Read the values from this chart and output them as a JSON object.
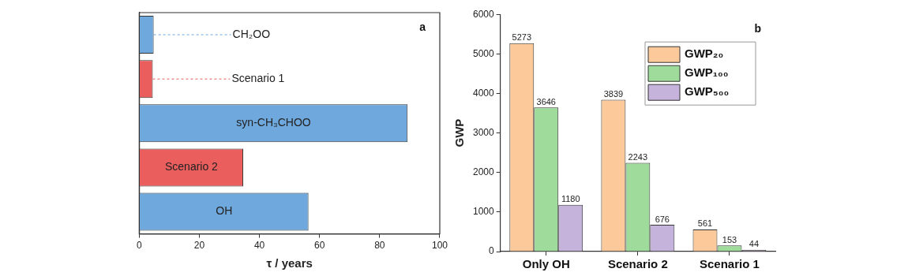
{
  "chart_data": [
    {
      "type": "bar",
      "orientation": "horizontal",
      "categories": [
        "CH₂OO",
        "Scenario 1",
        "syn-CH₃CHOO",
        "Scenario 2",
        "OH"
      ],
      "values": [
        4.8,
        4.5,
        89.3,
        34.6,
        56.3
      ],
      "colors": [
        "#6fa8dc",
        "#eb5e5e",
        "#6fa8dc",
        "#eb5e5e",
        "#6fa8dc"
      ],
      "xlim": [
        0,
        100
      ],
      "xticks": [
        0,
        20,
        40,
        60,
        80,
        100
      ],
      "xlabel": "τ / years",
      "tick_labels": "x",
      "grid": false,
      "legend": false,
      "annotations": [
        "a"
      ]
    },
    {
      "type": "bar",
      "categories": [
        "Only OH",
        "Scenario 2",
        "Scenario 1"
      ],
      "series": [
        {
          "name": "GWP₂₀",
          "color": "#fbc99a",
          "values": [
            5273,
            3839,
            561
          ]
        },
        {
          "name": "GWP₁₀₀",
          "color": "#9fdc9c",
          "values": [
            3646,
            2243,
            153
          ]
        },
        {
          "name": "GWP₅₀₀",
          "color": "#c5b3dc",
          "values": [
            1180,
            676,
            44
          ]
        }
      ],
      "ylim": [
        0,
        6000
      ],
      "yticks": [
        0,
        1000,
        2000,
        3000,
        4000,
        5000,
        6000
      ],
      "ylabel": "GWP",
      "data_labels": true,
      "grid": false,
      "legend": "top right",
      "annotations": [
        "b"
      ]
    }
  ]
}
